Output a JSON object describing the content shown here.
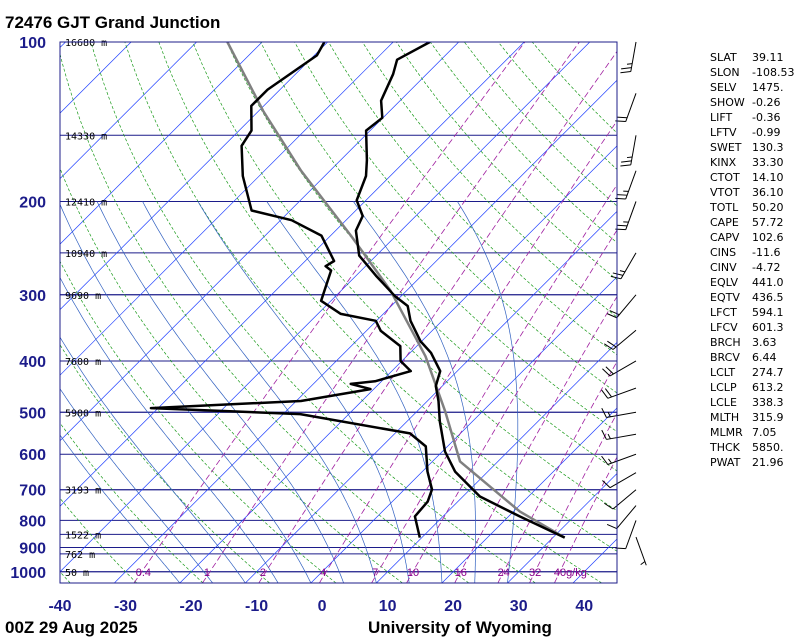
{
  "title": "72476 GJT Grand Junction",
  "footer": {
    "time": "00Z 29 Aug 2025",
    "source": "University of Wyoming"
  },
  "chart_data": {
    "type": "skewt",
    "log_y": true,
    "skew_degrees": 45,
    "ylim": [
      1050,
      100
    ],
    "yticks": [
      100,
      200,
      300,
      400,
      500,
      600,
      700,
      800,
      900,
      1000
    ],
    "xlim": [
      -40,
      45
    ],
    "xticks": [
      -40,
      -30,
      -20,
      -10,
      0,
      10,
      20,
      30,
      40
    ],
    "isobar_color": "#1c1c8a",
    "isotherm_color": "#2040ff",
    "dry_adiabat_color": "#1a9a1a",
    "moist_adiabat_color": "#3060c0",
    "mixing_ratio_color": "#a020a0",
    "height_labels": [
      {
        "pressure": 100,
        "label": "16680 m"
      },
      {
        "pressure": 150,
        "label": "14330 m"
      },
      {
        "pressure": 200,
        "label": "12410 m"
      },
      {
        "pressure": 250,
        "label": "10940 m"
      },
      {
        "pressure": 300,
        "label": "9690 m"
      },
      {
        "pressure": 400,
        "label": "7600 m"
      },
      {
        "pressure": 500,
        "label": "5900 m"
      },
      {
        "pressure": 700,
        "label": "3193 m"
      },
      {
        "pressure": 850,
        "label": "1522 m"
      },
      {
        "pressure": 925,
        "label": "762 m"
      },
      {
        "pressure": 1000,
        "label": "50 m"
      }
    ],
    "mixing_ratio_ticks": [
      0.4,
      1,
      2,
      4,
      7,
      10,
      16,
      24,
      32,
      {
        "value": 40,
        "label": "40g/kg"
      }
    ],
    "series": [
      {
        "color": "#808080",
        "width": 2.5,
        "pressure": [
          862,
          770,
          619,
          498,
          392,
          295,
          232,
          175,
          135,
          100
        ],
        "values": [
          31.8,
          21,
          4.2,
          -5.7,
          -17.1,
          -32.4,
          -46.9,
          -64.4,
          -79.3,
          -95.3
        ]
      },
      {
        "color": "#000000",
        "width": 2.5,
        "pressure": [
          862,
          786,
          721,
          647,
          593,
          520,
          476,
          446,
          418,
          386,
          367,
          336,
          315,
          302,
          276,
          253,
          227,
          213,
          199,
          179,
          167,
          147,
          139,
          129,
          115,
          108,
          100
        ],
        "values": [
          31.8,
          21.7,
          12.6,
          5.0,
          0.4,
          -5.0,
          -8.3,
          -11.0,
          -12.6,
          -16.8,
          -20.2,
          -24.8,
          -27.5,
          -30.9,
          -37.0,
          -42.6,
          -46.9,
          -48.1,
          -51.4,
          -53.7,
          -56.0,
          -60.6,
          -60.1,
          -62.9,
          -65.1,
          -66.7,
          -64.4
        ]
      },
      {
        "color": "#000000",
        "width": 2.5,
        "pressure": [
          862,
          786,
          737,
          699,
          647,
          580,
          548,
          504,
          491,
          476,
          452,
          442,
          437,
          418,
          400,
          375,
          351,
          336,
          326,
          308,
          270,
          265,
          259,
          232,
          217,
          208,
          179,
          157,
          147,
          132,
          123,
          106,
          100
        ],
        "values": [
          9.7,
          5.7,
          5.4,
          4.2,
          0.8,
          -3.3,
          -7.7,
          -27.4,
          -51.1,
          -29.3,
          -20.5,
          -24.3,
          -21.0,
          -17.1,
          -20.2,
          -22.5,
          -27.8,
          -30.1,
          -36.5,
          -41.5,
          -44.6,
          -46.1,
          -45.6,
          -51.4,
          -58.3,
          -65.9,
          -72.5,
          -77.3,
          -78.1,
          -81.9,
          -81.9,
          -79.6,
          -80.5
        ]
      }
    ],
    "winds": {
      "pressure": [
        860,
        800,
        750,
        700,
        650,
        600,
        550,
        500,
        450,
        400,
        350,
        300,
        250,
        200,
        175,
        150,
        125,
        100
      ],
      "direction": [
        160,
        200,
        220,
        230,
        240,
        250,
        260,
        260,
        250,
        240,
        230,
        220,
        210,
        200,
        200,
        190,
        200,
        190
      ],
      "speed": [
        5,
        10,
        10,
        10,
        10,
        15,
        15,
        15,
        20,
        20,
        20,
        20,
        25,
        25,
        25,
        25,
        20,
        25
      ]
    }
  },
  "stability_indices": [
    {
      "name": "SLAT",
      "value": "39.11"
    },
    {
      "name": "SLON",
      "value": "-108.53"
    },
    {
      "name": "SELV",
      "value": "1475."
    },
    {
      "name": "SHOW",
      "value": "-0.26"
    },
    {
      "name": "LIFT",
      "value": "-0.36"
    },
    {
      "name": "LFTV",
      "value": "-0.99"
    },
    {
      "name": "SWET",
      "value": "130.3"
    },
    {
      "name": "KINX",
      "value": "33.30"
    },
    {
      "name": "CTOT",
      "value": "14.10"
    },
    {
      "name": "VTOT",
      "value": "36.10"
    },
    {
      "name": "TOTL",
      "value": "50.20"
    },
    {
      "name": "CAPE",
      "value": "57.72"
    },
    {
      "name": "CAPV",
      "value": "102.6"
    },
    {
      "name": "CINS",
      "value": "-11.6"
    },
    {
      "name": "CINV",
      "value": "-4.72"
    },
    {
      "name": "EQLV",
      "value": "441.0"
    },
    {
      "name": "EQTV",
      "value": "436.5"
    },
    {
      "name": "LFCT",
      "value": "594.1"
    },
    {
      "name": "LFCV",
      "value": "601.3"
    },
    {
      "name": "BRCH",
      "value": "3.63"
    },
    {
      "name": "BRCV",
      "value": "6.44"
    },
    {
      "name": "LCLT",
      "value": "274.7"
    },
    {
      "name": "LCLP",
      "value": "613.2"
    },
    {
      "name": "LCLE",
      "value": "338.3"
    },
    {
      "name": "MLTH",
      "value": "315.9"
    },
    {
      "name": "MLMR",
      "value": "7.05"
    },
    {
      "name": "THCK",
      "value": "5850."
    },
    {
      "name": "PWAT",
      "value": "21.96"
    }
  ]
}
